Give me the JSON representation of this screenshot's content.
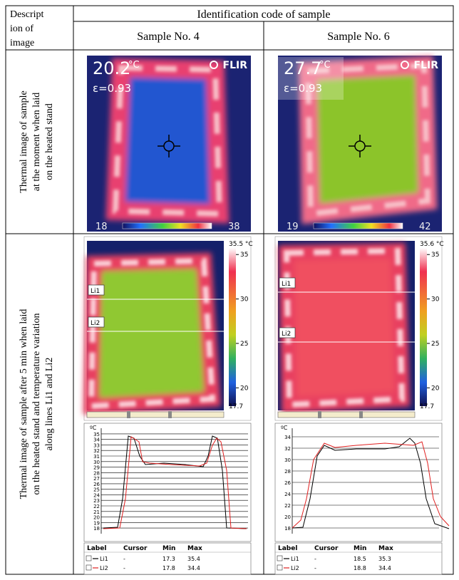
{
  "table": {
    "header": {
      "description": [
        "Descript",
        "ion of",
        "image"
      ],
      "identification": "Identification code of sample",
      "samples": [
        "Sample No. 4",
        "Sample No. 6"
      ]
    },
    "rows": [
      {
        "label": [
          "Thermal image of sample",
          "at the moment when laid",
          "on the heated stand"
        ]
      },
      {
        "label": [
          "Thermal image of sample after 5 min when laid",
          "on the heated stand and temperature variation",
          "along lines Li1 and Li2"
        ]
      }
    ]
  },
  "initial_images": [
    {
      "temperature": "20.2",
      "unit": "°C",
      "emissivity": "ε=0.93",
      "brand": "FLIR",
      "scale_min": "18",
      "scale_max": "38"
    },
    {
      "temperature": "27.7",
      "unit": "°C",
      "emissivity": "ε=0.93",
      "brand": "FLIR",
      "scale_min": "19",
      "scale_max": "42"
    }
  ],
  "after_images": [
    {
      "colorbar_max": "35.5 °C",
      "colorbar_ticks": [
        "35",
        "30",
        "25",
        "20"
      ],
      "colorbar_min": "17.7",
      "line_labels": [
        "Li1",
        "Li2"
      ],
      "chart": {
        "unit": "ºC",
        "ylim": [
          17.5,
          35.5
        ],
        "yticks": [
          18,
          19,
          20,
          21,
          22,
          23,
          24,
          25,
          26,
          27,
          28,
          29,
          30,
          31,
          32,
          33,
          34,
          35
        ],
        "legend": {
          "columns": [
            "Label",
            "Cursor",
            "Min",
            "Max"
          ],
          "rows": [
            [
              "Li1",
              "-",
              "17.3",
              "35.4"
            ],
            [
              "Li2",
              "-",
              "17.8",
              "34.4"
            ]
          ]
        }
      }
    },
    {
      "colorbar_max": "35.6 °C",
      "colorbar_ticks": [
        "35",
        "30",
        "25",
        "20"
      ],
      "colorbar_min": "17.7",
      "line_labels": [
        "Li1",
        "Li2"
      ],
      "chart": {
        "unit": "ºC",
        "ylim": [
          17.5,
          35
        ],
        "yticks": [
          18,
          20,
          22,
          24,
          26,
          28,
          30,
          32,
          34
        ],
        "legend": {
          "columns": [
            "Label",
            "Cursor",
            "Min",
            "Max"
          ],
          "rows": [
            [
              "Li1",
              "-",
              "18.5",
              "35.3"
            ],
            [
              "Li2",
              "-",
              "18.8",
              "34.4"
            ]
          ]
        }
      }
    }
  ]
}
